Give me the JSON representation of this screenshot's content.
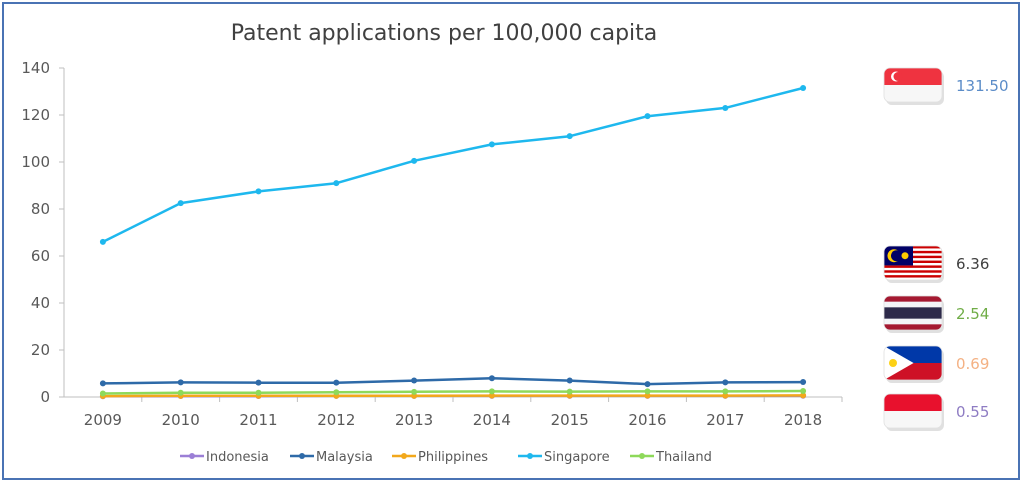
{
  "chart_data": {
    "type": "line",
    "title": "Patent applications per 100,000 capita",
    "xlabel": "",
    "ylabel": "",
    "x": [
      "2009",
      "2010",
      "2011",
      "2012",
      "2013",
      "2014",
      "2015",
      "2016",
      "2017",
      "2018"
    ],
    "ylim": [
      0,
      140
    ],
    "yticks": [
      0,
      20,
      40,
      60,
      80,
      100,
      120,
      140
    ],
    "grid": false,
    "legend_position": "bottom",
    "series": [
      {
        "name": "Indonesia",
        "color": "#9b7fd6",
        "values": [
          0.3,
          0.4,
          0.4,
          0.5,
          0.5,
          0.5,
          0.5,
          0.5,
          0.5,
          0.55
        ]
      },
      {
        "name": "Malaysia",
        "color": "#2e6aa8",
        "values": [
          5.8,
          6.2,
          6.1,
          6.1,
          7.0,
          8.0,
          7.0,
          5.5,
          6.2,
          6.36
        ]
      },
      {
        "name": "Philippines",
        "color": "#f2a81c",
        "values": [
          0.4,
          0.5,
          0.5,
          0.5,
          0.5,
          0.6,
          0.6,
          0.6,
          0.6,
          0.69
        ]
      },
      {
        "name": "Singapore",
        "color": "#1eb8ee",
        "values": [
          66,
          82.5,
          87.5,
          91,
          100.5,
          107.5,
          111,
          119.5,
          123,
          131.5
        ]
      },
      {
        "name": "Thailand",
        "color": "#8ed95a",
        "values": [
          1.5,
          1.8,
          1.8,
          2.0,
          2.2,
          2.4,
          2.3,
          2.4,
          2.4,
          2.54
        ]
      }
    ],
    "annotations": [
      {
        "country_flag": "singapore-flag",
        "value": "131.50",
        "color": "#5b8cc8"
      },
      {
        "country_flag": "malaysia-flag",
        "value": "6.36",
        "color": "#404040"
      },
      {
        "country_flag": "thailand-flag",
        "value": "2.54",
        "color": "#70ad47"
      },
      {
        "country_flag": "philippines-flag",
        "value": "0.69",
        "color": "#f4b183"
      },
      {
        "country_flag": "indonesia-flag",
        "value": "0.55",
        "color": "#8e7cc3"
      }
    ]
  }
}
